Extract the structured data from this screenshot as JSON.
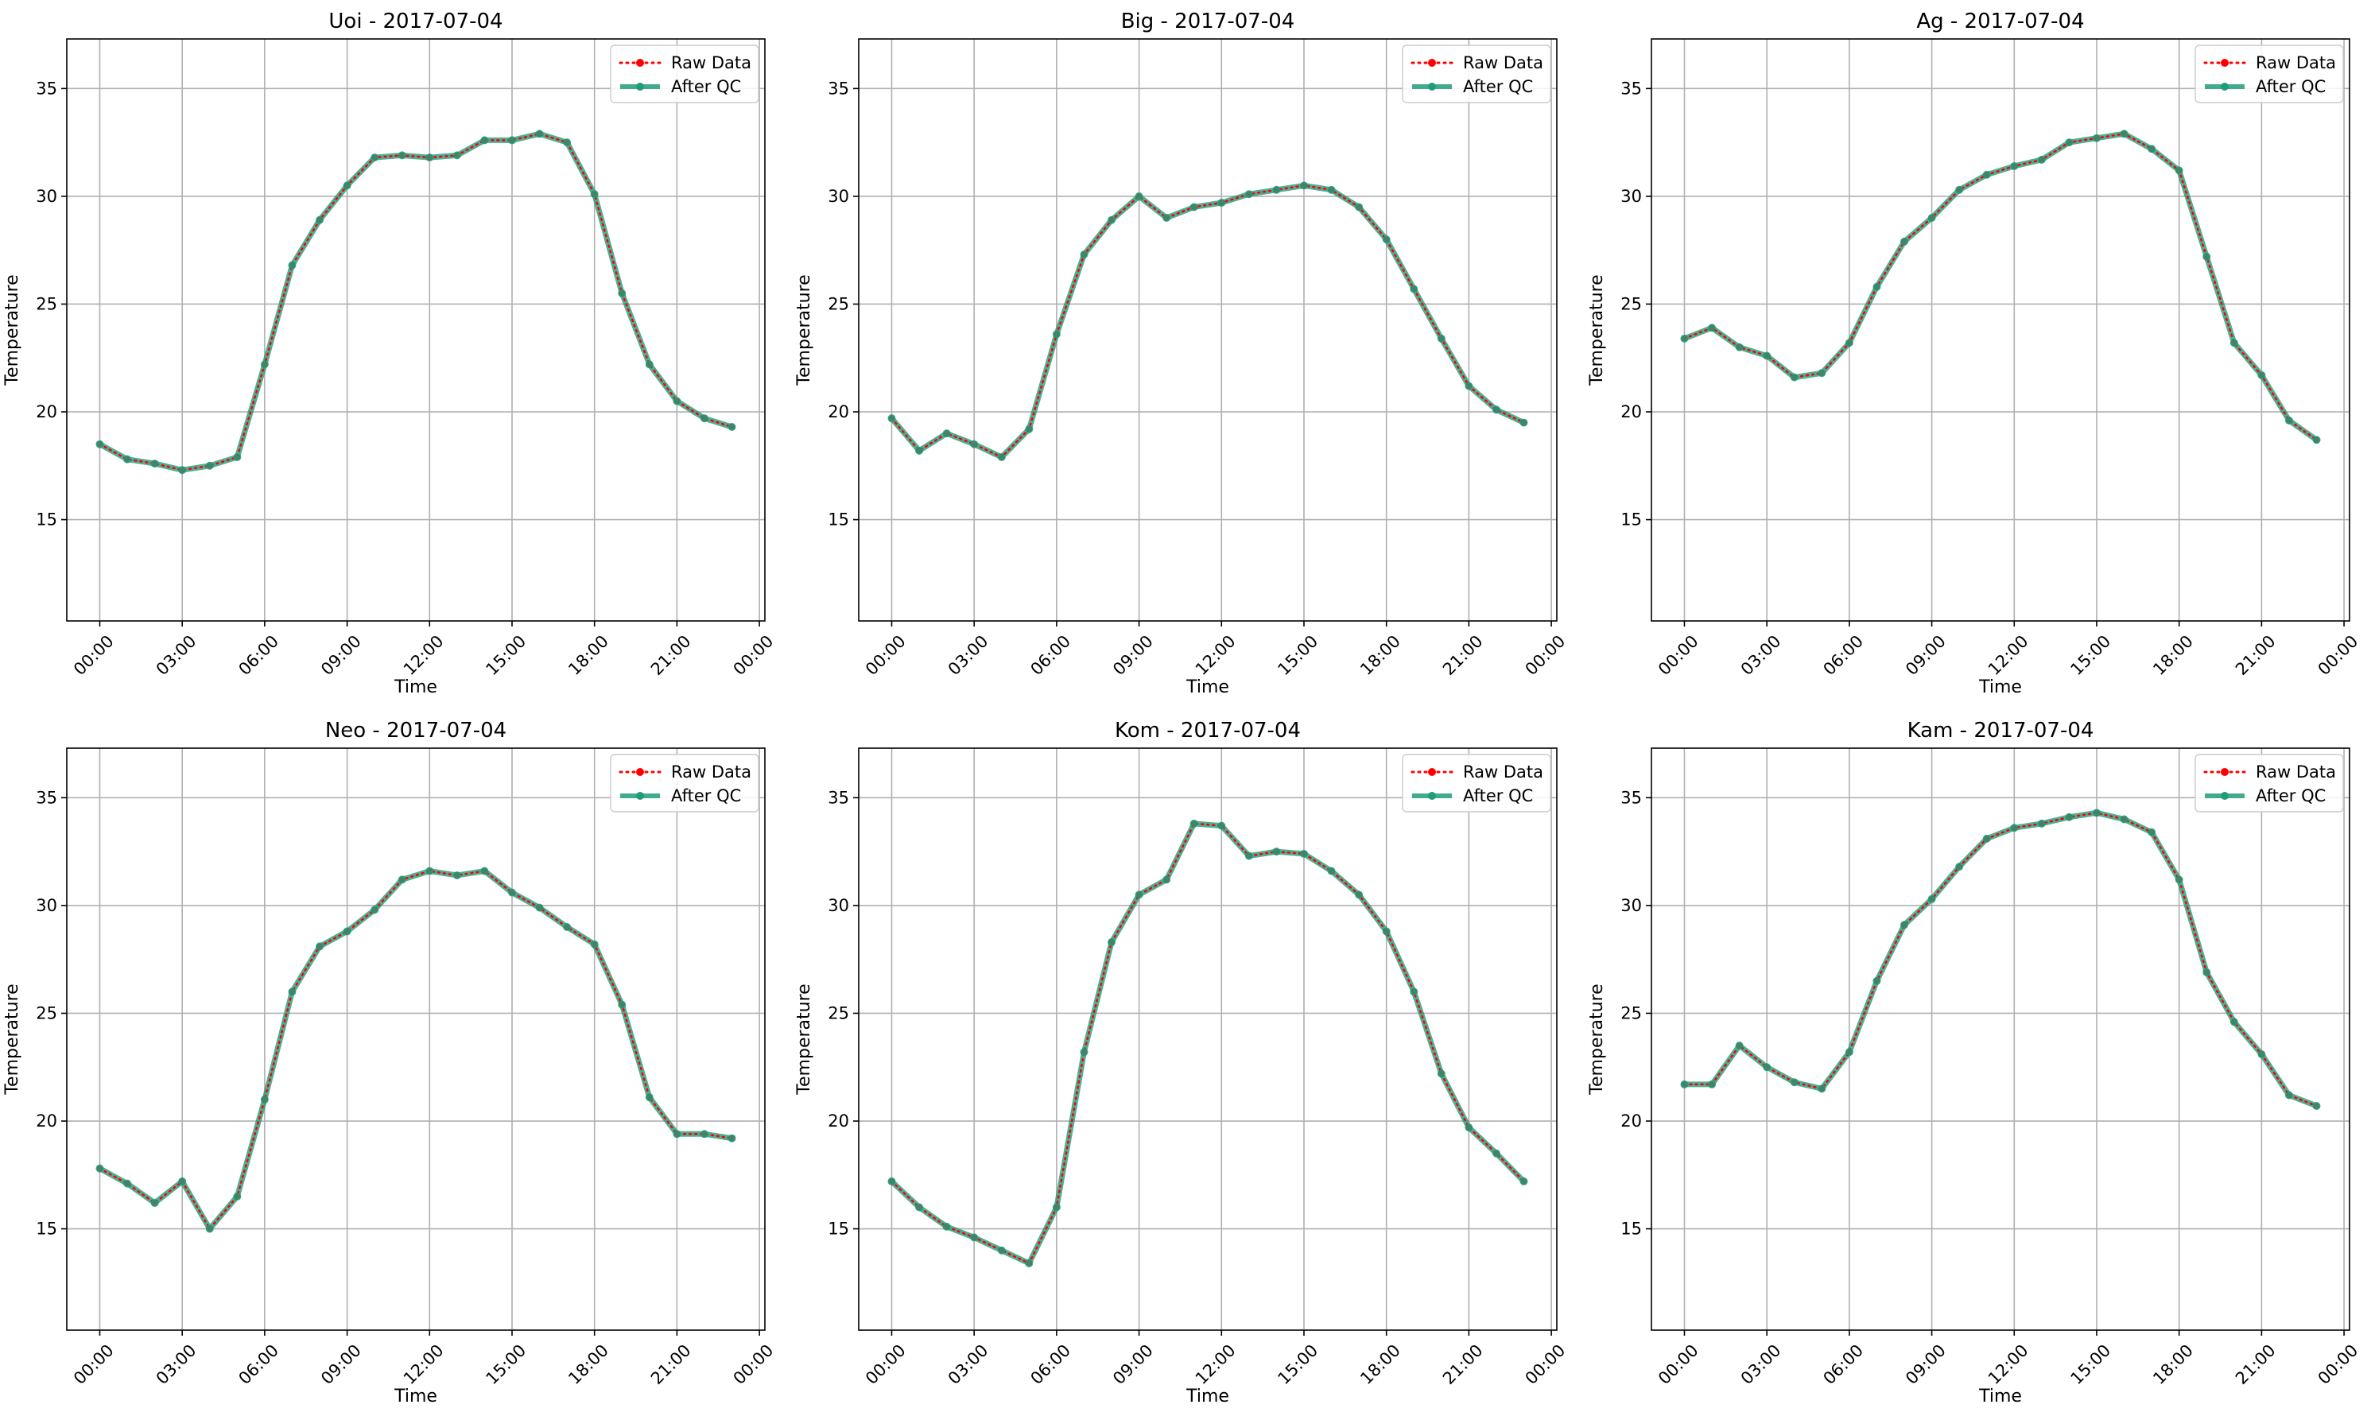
{
  "legend": {
    "raw_label": "Raw Data",
    "qc_label": "After QC",
    "placement": "upper-right"
  },
  "colors": {
    "raw": "#ff0000",
    "qc": "#1f9c7a",
    "grid": "#b0b0b0",
    "axes": "#000000"
  },
  "chart_data": [
    {
      "type": "line",
      "title": "Uoi - 2017-07-04",
      "xlabel": "Time",
      "ylabel": "Temperature",
      "x_ticks": [
        "00:00",
        "03:00",
        "06:00",
        "09:00",
        "12:00",
        "15:00",
        "18:00",
        "21:00",
        "00:00"
      ],
      "x_range_hours": [
        -1.2,
        24.2
      ],
      "ylim": [
        10.3,
        37.3
      ],
      "y_ticks": [
        15,
        20,
        25,
        30,
        35
      ],
      "grid": true,
      "series": [
        {
          "name": "Raw Data",
          "values": [
            18.5,
            17.8,
            17.6,
            17.3,
            17.5,
            17.9,
            22.2,
            26.8,
            28.9,
            30.5,
            31.8,
            31.9,
            31.8,
            31.9,
            32.6,
            32.6,
            32.9,
            32.5,
            30.1,
            25.5,
            22.2,
            20.5,
            19.7,
            19.3
          ]
        },
        {
          "name": "After QC",
          "values": [
            18.5,
            17.8,
            17.6,
            17.3,
            17.5,
            17.9,
            22.2,
            26.8,
            28.9,
            30.5,
            31.8,
            31.9,
            31.8,
            31.9,
            32.6,
            32.6,
            32.9,
            32.5,
            30.1,
            25.5,
            22.2,
            20.5,
            19.7,
            19.3
          ]
        }
      ]
    },
    {
      "type": "line",
      "title": "Big - 2017-07-04",
      "xlabel": "Time",
      "ylabel": "Temperature",
      "x_ticks": [
        "00:00",
        "03:00",
        "06:00",
        "09:00",
        "12:00",
        "15:00",
        "18:00",
        "21:00",
        "00:00"
      ],
      "x_range_hours": [
        -1.2,
        24.2
      ],
      "ylim": [
        10.3,
        37.3
      ],
      "y_ticks": [
        15,
        20,
        25,
        30,
        35
      ],
      "grid": true,
      "series": [
        {
          "name": "Raw Data",
          "values": [
            19.7,
            18.2,
            19.0,
            18.5,
            17.9,
            19.2,
            23.6,
            27.3,
            28.9,
            30.0,
            29.0,
            29.5,
            29.7,
            30.1,
            30.3,
            30.5,
            30.3,
            29.5,
            28.0,
            25.7,
            23.4,
            21.2,
            20.1,
            19.5
          ]
        },
        {
          "name": "After QC",
          "values": [
            19.7,
            18.2,
            19.0,
            18.5,
            17.9,
            19.2,
            23.6,
            27.3,
            28.9,
            30.0,
            29.0,
            29.5,
            29.7,
            30.1,
            30.3,
            30.5,
            30.3,
            29.5,
            28.0,
            25.7,
            23.4,
            21.2,
            20.1,
            19.5
          ]
        }
      ]
    },
    {
      "type": "line",
      "title": "Ag - 2017-07-04",
      "xlabel": "Time",
      "ylabel": "Temperature",
      "x_ticks": [
        "00:00",
        "03:00",
        "06:00",
        "09:00",
        "12:00",
        "15:00",
        "18:00",
        "21:00",
        "00:00"
      ],
      "x_range_hours": [
        -1.2,
        24.2
      ],
      "ylim": [
        10.3,
        37.3
      ],
      "y_ticks": [
        15,
        20,
        25,
        30,
        35
      ],
      "grid": true,
      "series": [
        {
          "name": "Raw Data",
          "values": [
            23.4,
            23.9,
            23.0,
            22.6,
            21.6,
            21.8,
            23.2,
            25.8,
            27.9,
            29.0,
            30.3,
            31.0,
            31.4,
            31.7,
            32.5,
            32.7,
            32.9,
            32.2,
            31.2,
            27.2,
            23.2,
            21.7,
            19.6,
            18.7
          ]
        },
        {
          "name": "After QC",
          "values": [
            23.4,
            23.9,
            23.0,
            22.6,
            21.6,
            21.8,
            23.2,
            25.8,
            27.9,
            29.0,
            30.3,
            31.0,
            31.4,
            31.7,
            32.5,
            32.7,
            32.9,
            32.2,
            31.2,
            27.2,
            23.2,
            21.7,
            19.6,
            18.7
          ]
        }
      ]
    },
    {
      "type": "line",
      "title": "Neo - 2017-07-04",
      "xlabel": "Time",
      "ylabel": "Temperature",
      "x_ticks": [
        "00:00",
        "03:00",
        "06:00",
        "09:00",
        "12:00",
        "15:00",
        "18:00",
        "21:00",
        "00:00"
      ],
      "x_range_hours": [
        -1.2,
        24.2
      ],
      "ylim": [
        10.3,
        37.3
      ],
      "y_ticks": [
        15,
        20,
        25,
        30,
        35
      ],
      "grid": true,
      "series": [
        {
          "name": "Raw Data",
          "values": [
            17.8,
            17.1,
            16.2,
            17.2,
            15.0,
            16.5,
            21.0,
            26.0,
            28.1,
            28.8,
            29.8,
            31.2,
            31.6,
            31.4,
            31.6,
            30.6,
            29.9,
            29.0,
            28.2,
            25.4,
            21.1,
            19.4,
            19.4,
            19.2
          ]
        },
        {
          "name": "After QC",
          "values": [
            17.8,
            17.1,
            16.2,
            17.2,
            15.0,
            16.5,
            21.0,
            26.0,
            28.1,
            28.8,
            29.8,
            31.2,
            31.6,
            31.4,
            31.6,
            30.6,
            29.9,
            29.0,
            28.2,
            25.4,
            21.1,
            19.4,
            19.4,
            19.2
          ]
        }
      ]
    },
    {
      "type": "line",
      "title": "Kom - 2017-07-04",
      "xlabel": "Time",
      "ylabel": "Temperature",
      "x_ticks": [
        "00:00",
        "03:00",
        "06:00",
        "09:00",
        "12:00",
        "15:00",
        "18:00",
        "21:00",
        "00:00"
      ],
      "x_range_hours": [
        -1.2,
        24.2
      ],
      "ylim": [
        10.3,
        37.3
      ],
      "y_ticks": [
        15,
        20,
        25,
        30,
        35
      ],
      "grid": true,
      "series": [
        {
          "name": "Raw Data",
          "values": [
            17.2,
            16.0,
            15.1,
            14.6,
            14.0,
            13.4,
            16.0,
            23.2,
            28.3,
            30.5,
            31.2,
            33.8,
            33.7,
            32.3,
            32.5,
            32.4,
            31.6,
            30.5,
            28.8,
            26.0,
            22.2,
            19.7,
            18.5,
            17.2
          ]
        },
        {
          "name": "After QC",
          "values": [
            17.2,
            16.0,
            15.1,
            14.6,
            14.0,
            13.4,
            16.0,
            23.2,
            28.3,
            30.5,
            31.2,
            33.8,
            33.7,
            32.3,
            32.5,
            32.4,
            31.6,
            30.5,
            28.8,
            26.0,
            22.2,
            19.7,
            18.5,
            17.2
          ]
        }
      ]
    },
    {
      "type": "line",
      "title": "Kam - 2017-07-04",
      "xlabel": "Time",
      "ylabel": "Temperature",
      "x_ticks": [
        "00:00",
        "03:00",
        "06:00",
        "09:00",
        "12:00",
        "15:00",
        "18:00",
        "21:00",
        "00:00"
      ],
      "x_range_hours": [
        -1.2,
        24.2
      ],
      "ylim": [
        10.3,
        37.3
      ],
      "y_ticks": [
        15,
        20,
        25,
        30,
        35
      ],
      "grid": true,
      "series": [
        {
          "name": "Raw Data",
          "values": [
            21.7,
            21.7,
            23.5,
            22.5,
            21.8,
            21.5,
            23.2,
            26.5,
            29.1,
            30.3,
            31.8,
            33.1,
            33.6,
            33.8,
            34.1,
            34.3,
            34.0,
            33.4,
            31.2,
            26.9,
            24.6,
            23.1,
            21.2,
            20.7
          ]
        },
        {
          "name": "After QC",
          "values": [
            21.7,
            21.7,
            23.5,
            22.5,
            21.8,
            21.5,
            23.2,
            26.5,
            29.1,
            30.3,
            31.8,
            33.1,
            33.6,
            33.8,
            34.1,
            34.3,
            34.0,
            33.4,
            31.2,
            26.9,
            24.6,
            23.1,
            21.2,
            20.7
          ]
        }
      ]
    }
  ]
}
